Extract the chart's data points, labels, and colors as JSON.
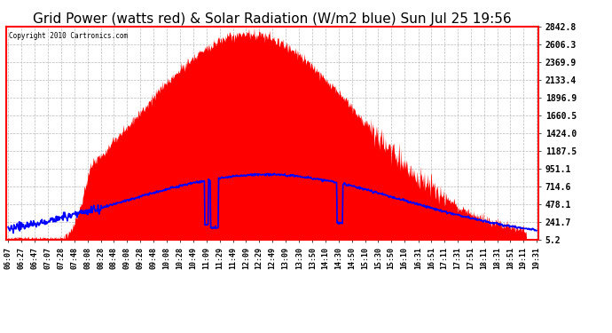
{
  "title": "Grid Power (watts red) & Solar Radiation (W/m2 blue) Sun Jul 25 19:56",
  "copyright": "Copyright 2010 Cartronics.com",
  "y_ticks": [
    5.2,
    241.7,
    478.1,
    714.6,
    951.1,
    1187.5,
    1424.0,
    1660.5,
    1896.9,
    2133.4,
    2369.9,
    2606.3,
    2842.8
  ],
  "y_min": 0,
  "y_max": 2842.8,
  "x_labels": [
    "06:07",
    "06:27",
    "06:47",
    "07:07",
    "07:28",
    "07:48",
    "08:08",
    "08:28",
    "08:48",
    "09:08",
    "09:28",
    "09:48",
    "10:08",
    "10:28",
    "10:49",
    "11:09",
    "11:29",
    "11:49",
    "12:09",
    "12:29",
    "12:49",
    "13:09",
    "13:30",
    "13:50",
    "14:10",
    "14:30",
    "14:50",
    "15:10",
    "15:30",
    "15:50",
    "16:10",
    "16:31",
    "16:51",
    "17:11",
    "17:31",
    "17:51",
    "18:11",
    "18:31",
    "18:51",
    "19:11",
    "19:31"
  ],
  "background_color": "#ffffff",
  "grid_color": "#bbbbbb",
  "red_color": "#ff0000",
  "blue_color": "#0000ff",
  "title_fontsize": 11,
  "border_color": "#ff0000",
  "grid_peak_watts": 2750,
  "solar_peak_wm2": 870
}
